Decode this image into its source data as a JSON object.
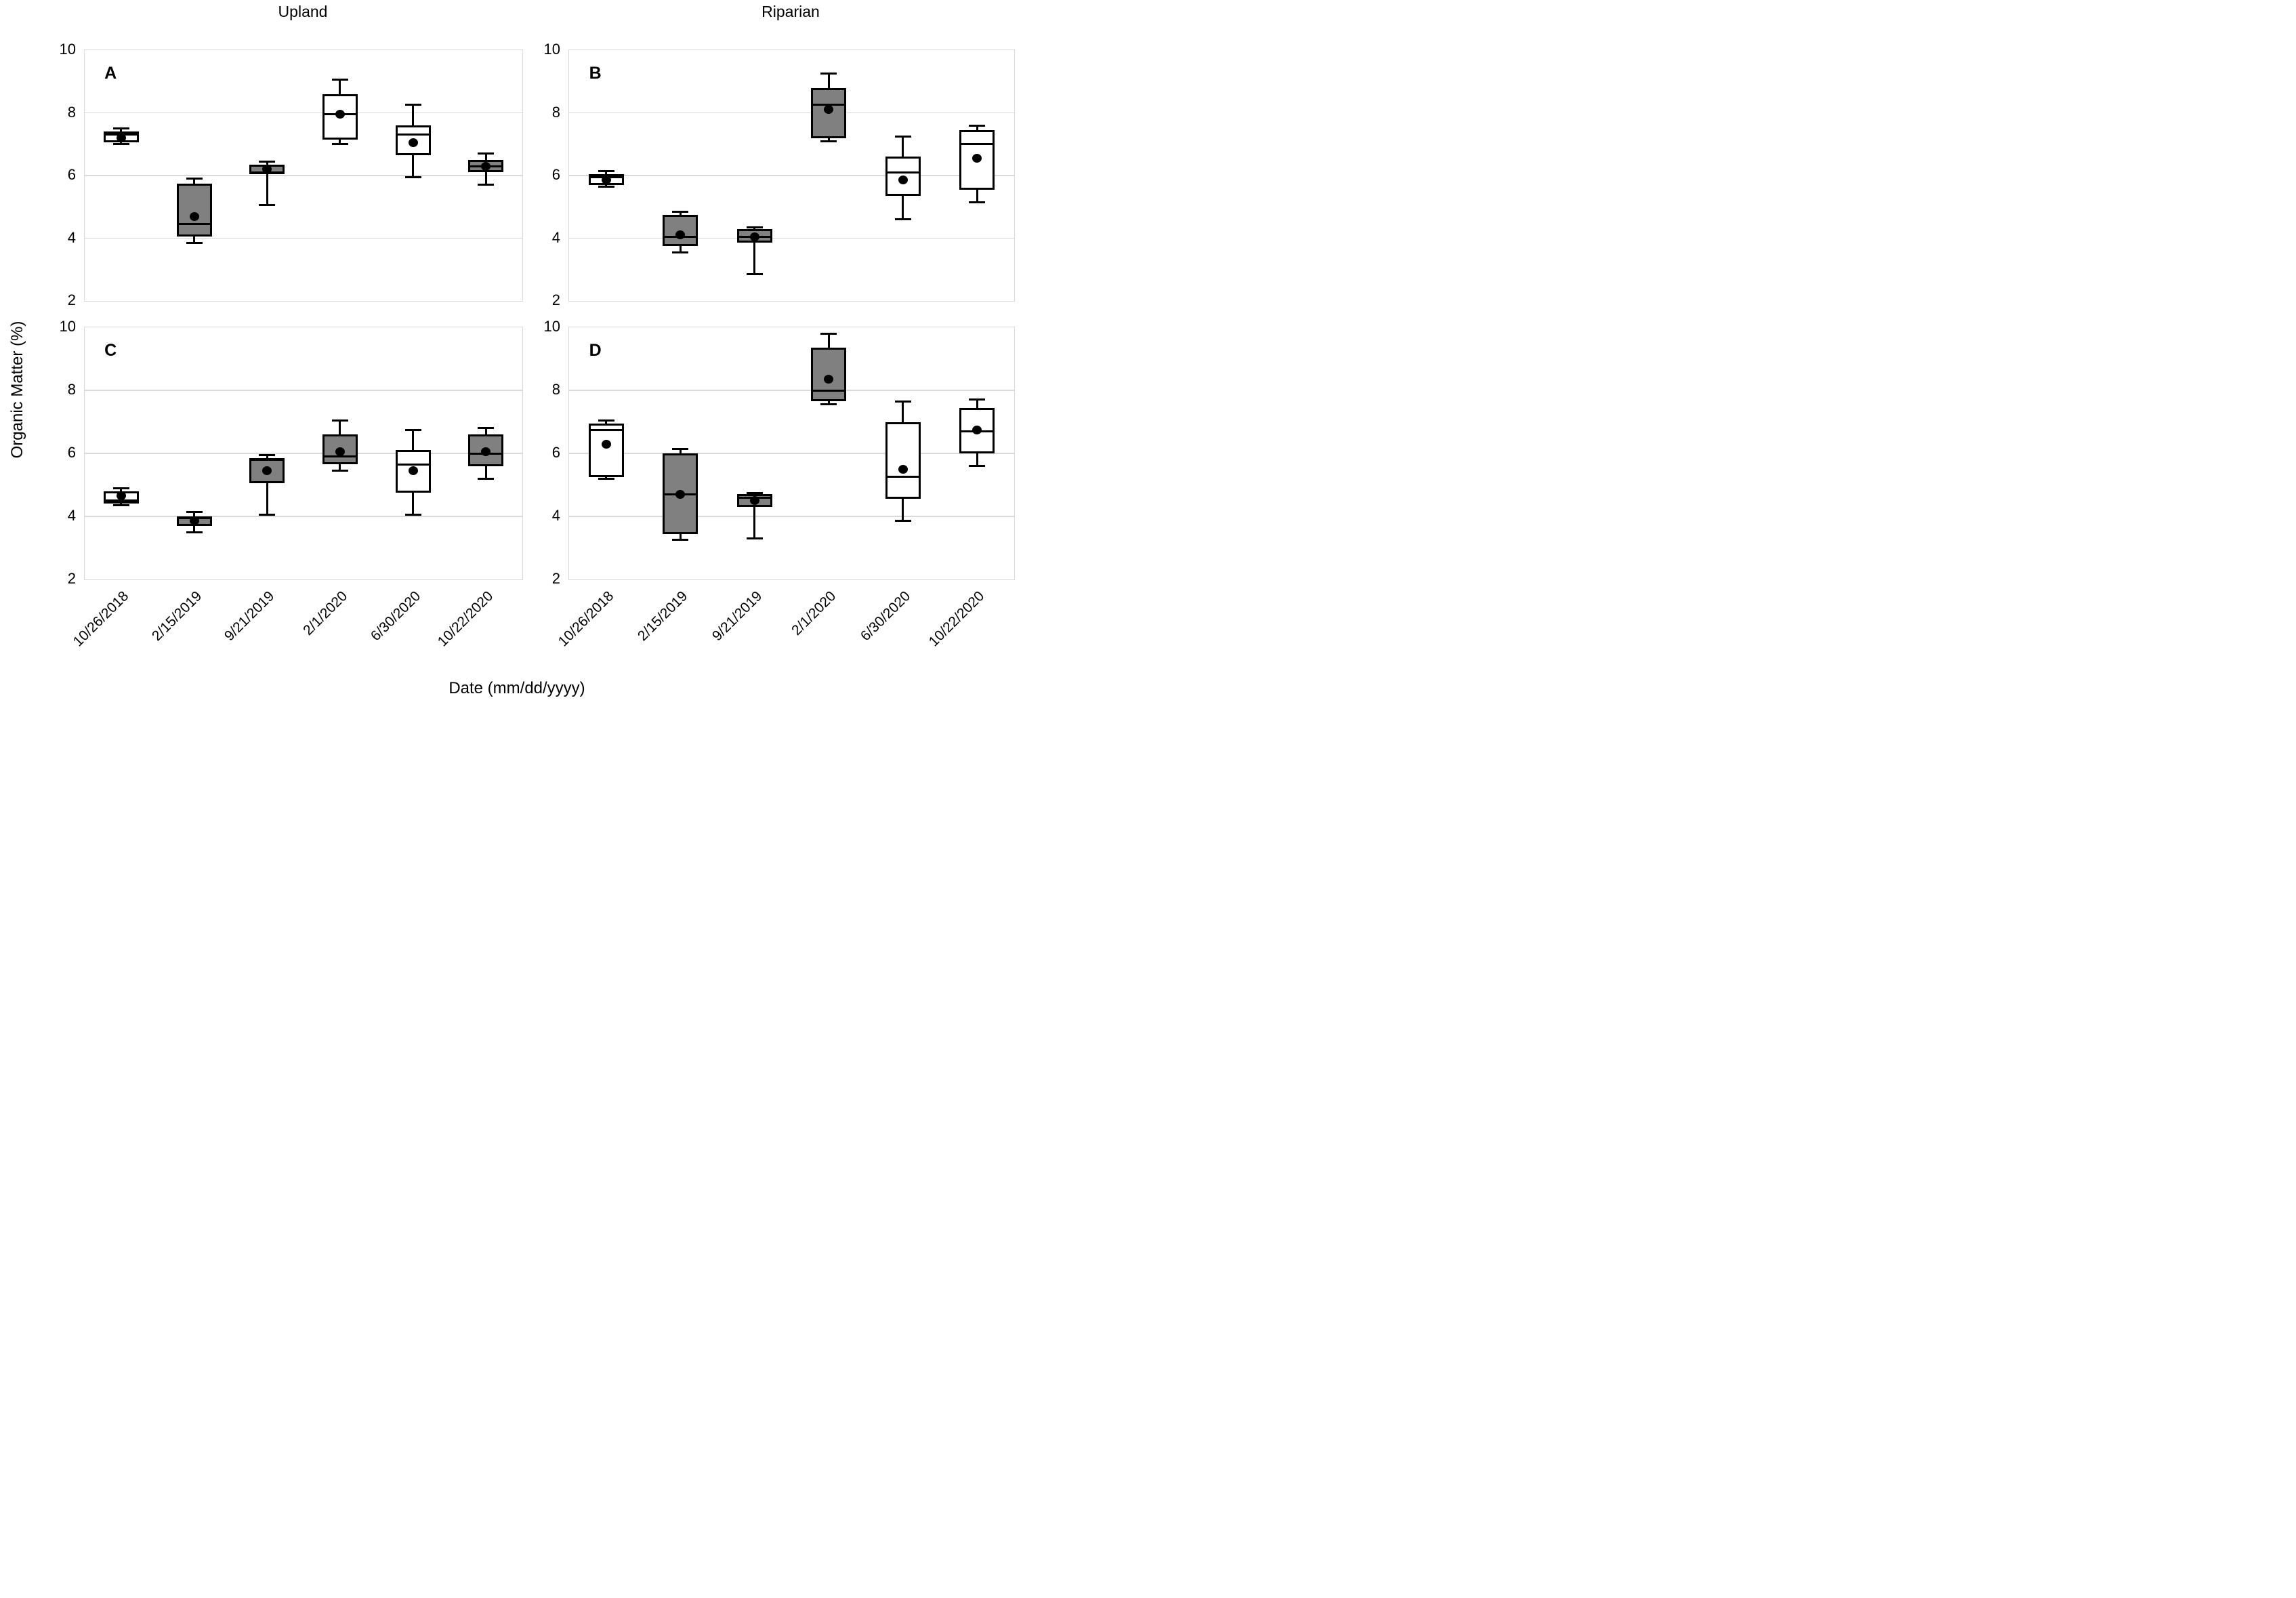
{
  "columns": [
    "Upland",
    "Riparian"
  ],
  "axes": {
    "y_label": "Organic Matter (%)",
    "x_label": "Date (mm/dd/yyyy)"
  },
  "colors": {
    "box_gray": "#808080",
    "box_white": "#ffffff",
    "box_border": "#000000",
    "gridline": "#d9d9d9",
    "mean_dot": "#000000",
    "text": "#000000"
  },
  "chart_data": {
    "type": "boxplot",
    "title": "",
    "xlabel": "Date (mm/dd/yyyy)",
    "ylabel": "Organic Matter (%)",
    "ylim": [
      2,
      10
    ],
    "yticks": [
      10,
      8,
      6,
      4,
      2
    ],
    "grid": "horizontal",
    "marker_note": "black dot = mean, horizontal line = median, whisker caps = min/max",
    "categories": [
      "10/26/2018",
      "2/15/2019",
      "9/21/2019",
      "2/1/2020",
      "6/30/2020",
      "10/22/2020"
    ],
    "panels": [
      {
        "label": "A",
        "column": "Upland",
        "row": "top",
        "series": [
          {
            "date": "10/26/2018",
            "fill": "white",
            "low": 7.0,
            "q1": 7.05,
            "median": 7.3,
            "q3": 7.4,
            "high": 7.5,
            "mean": 7.2
          },
          {
            "date": "2/15/2019",
            "fill": "gray",
            "low": 3.85,
            "q1": 4.05,
            "median": 4.45,
            "q3": 5.75,
            "high": 5.9,
            "mean": 4.7
          },
          {
            "date": "9/21/2019",
            "fill": "gray",
            "low": 5.05,
            "q1": 6.05,
            "median": 6.1,
            "q3": 6.35,
            "high": 6.45,
            "mean": 6.2
          },
          {
            "date": "2/1/2020",
            "fill": "white",
            "low": 7.0,
            "q1": 7.15,
            "median": 7.95,
            "q3": 8.6,
            "high": 9.05,
            "mean": 7.95
          },
          {
            "date": "6/30/2020",
            "fill": "white",
            "low": 5.95,
            "q1": 6.65,
            "median": 7.3,
            "q3": 7.6,
            "high": 8.25,
            "mean": 7.05
          },
          {
            "date": "10/22/2020",
            "fill": "gray",
            "low": 5.7,
            "q1": 6.1,
            "median": 6.3,
            "q3": 6.5,
            "high": 6.7,
            "mean": 6.3
          }
        ]
      },
      {
        "label": "B",
        "column": "Riparian",
        "row": "top",
        "series": [
          {
            "date": "10/26/2018",
            "fill": "white",
            "low": 5.65,
            "q1": 5.7,
            "median": 5.95,
            "q3": 6.05,
            "high": 6.15,
            "mean": 5.85
          },
          {
            "date": "2/15/2019",
            "fill": "gray",
            "low": 3.55,
            "q1": 3.75,
            "median": 4.05,
            "q3": 4.75,
            "high": 4.85,
            "mean": 4.1
          },
          {
            "date": "9/21/2019",
            "fill": "gray",
            "low": 2.85,
            "q1": 3.85,
            "median": 4.05,
            "q3": 4.3,
            "high": 4.35,
            "mean": 4.05
          },
          {
            "date": "2/1/2020",
            "fill": "gray",
            "low": 7.1,
            "q1": 7.2,
            "median": 8.25,
            "q3": 8.8,
            "high": 9.25,
            "mean": 8.1
          },
          {
            "date": "6/30/2020",
            "fill": "white",
            "low": 4.6,
            "q1": 5.35,
            "median": 6.1,
            "q3": 6.6,
            "high": 7.25,
            "mean": 5.85
          },
          {
            "date": "10/22/2020",
            "fill": "white",
            "low": 5.15,
            "q1": 5.55,
            "median": 7.0,
            "q3": 7.45,
            "high": 7.6,
            "mean": 6.55
          }
        ]
      },
      {
        "label": "C",
        "column": "Upland",
        "row": "bottom",
        "series": [
          {
            "date": "10/26/2018",
            "fill": "white",
            "low": 4.35,
            "q1": 4.4,
            "median": 4.5,
            "q3": 4.8,
            "high": 4.9,
            "mean": 4.65
          },
          {
            "date": "2/15/2019",
            "fill": "gray",
            "low": 3.5,
            "q1": 3.7,
            "median": 3.95,
            "q3": 4.0,
            "high": 4.15,
            "mean": 3.85
          },
          {
            "date": "9/21/2019",
            "fill": "gray",
            "low": 4.05,
            "q1": 5.05,
            "median": 5.8,
            "q3": 5.85,
            "high": 5.95,
            "mean": 5.45
          },
          {
            "date": "2/1/2020",
            "fill": "gray",
            "low": 5.45,
            "q1": 5.65,
            "median": 5.9,
            "q3": 6.6,
            "high": 7.05,
            "mean": 6.05
          },
          {
            "date": "6/30/2020",
            "fill": "white",
            "low": 4.05,
            "q1": 4.75,
            "median": 5.65,
            "q3": 6.1,
            "high": 6.75,
            "mean": 5.45
          },
          {
            "date": "10/22/2020",
            "fill": "gray",
            "low": 5.2,
            "q1": 5.6,
            "median": 6.0,
            "q3": 6.6,
            "high": 6.8,
            "mean": 6.05
          }
        ]
      },
      {
        "label": "D",
        "column": "Riparian",
        "row": "bottom",
        "series": [
          {
            "date": "10/26/2018",
            "fill": "white",
            "low": 5.2,
            "q1": 5.25,
            "median": 6.75,
            "q3": 6.95,
            "high": 7.05,
            "mean": 6.3
          },
          {
            "date": "2/15/2019",
            "fill": "gray",
            "low": 3.25,
            "q1": 3.45,
            "median": 4.7,
            "q3": 6.0,
            "high": 6.15,
            "mean": 4.7
          },
          {
            "date": "9/21/2019",
            "fill": "gray",
            "low": 3.3,
            "q1": 4.3,
            "median": 4.6,
            "q3": 4.7,
            "high": 4.75,
            "mean": 4.5
          },
          {
            "date": "2/1/2020",
            "fill": "gray",
            "low": 7.55,
            "q1": 7.65,
            "median": 8.0,
            "q3": 9.35,
            "high": 9.8,
            "mean": 8.35
          },
          {
            "date": "6/30/2020",
            "fill": "white",
            "low": 3.85,
            "q1": 4.55,
            "median": 5.25,
            "q3": 7.0,
            "high": 7.65,
            "mean": 5.5
          },
          {
            "date": "10/22/2020",
            "fill": "white",
            "low": 5.6,
            "q1": 6.0,
            "median": 6.7,
            "q3": 7.45,
            "high": 7.7,
            "mean": 6.75
          }
        ]
      }
    ]
  }
}
